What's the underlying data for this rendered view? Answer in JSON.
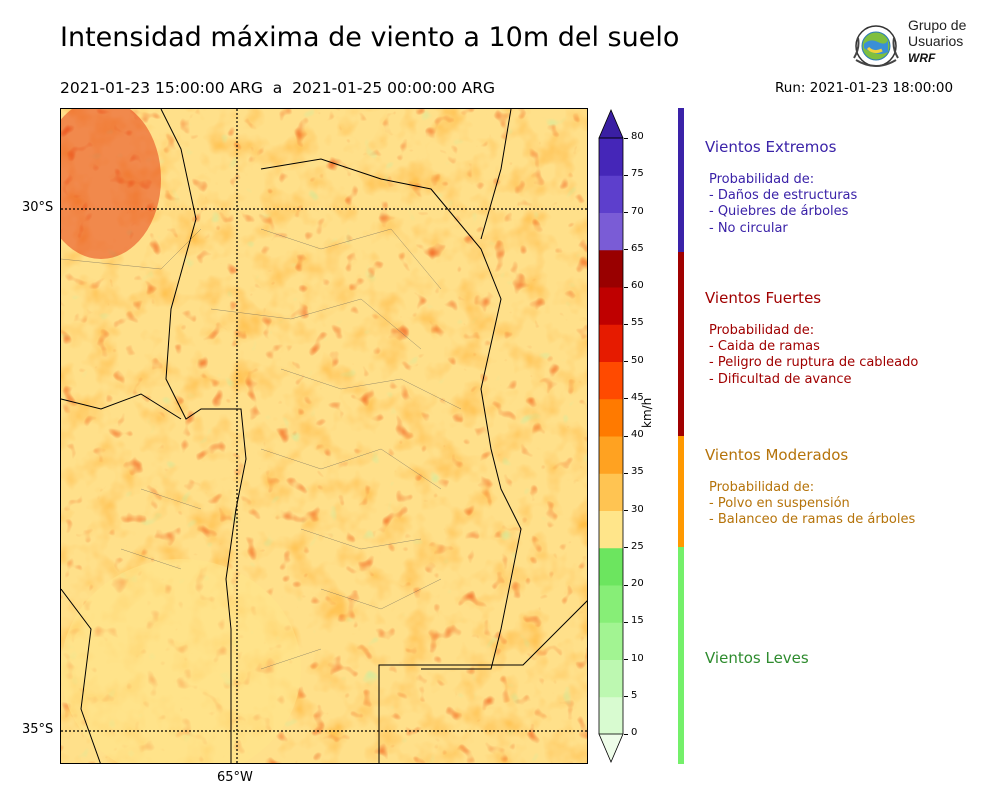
{
  "title": "Intensidad máxima de viento a 10m del suelo",
  "period": "2021-01-23 15:00:00 ARG  a  2021-01-25 00:00:00 ARG",
  "run": "Run: 2021-01-23 18:00:00",
  "logo": {
    "line1": "Grupo de",
    "line2": "Usuarios",
    "line3": "WRF"
  },
  "map": {
    "lat_labels": [
      "30°S",
      "35°S"
    ],
    "lon_labels": [
      "65°W"
    ]
  },
  "colorbar": {
    "units": "km/h",
    "ticks": [
      "0",
      "5",
      "10",
      "15",
      "20",
      "25",
      "30",
      "35",
      "40",
      "45",
      "50",
      "55",
      "60",
      "65",
      "70",
      "75",
      "80"
    ],
    "colors": [
      "#eefde9",
      "#d8fbd0",
      "#bdf8b1",
      "#a2f492",
      "#87ee77",
      "#6ce55f",
      "#ffe58a",
      "#ffc452",
      "#ffa221",
      "#ff7a00",
      "#ff4a00",
      "#e61b00",
      "#bf0000",
      "#990000",
      "#7a5cd6",
      "#5d3fcc",
      "#4526b8",
      "#3a1fa3"
    ]
  },
  "categories": [
    {
      "title": "Vientos Extremos",
      "color": "#3a22a8",
      "desc": [
        "Probabilidad de:",
        "- Daños de estructuras",
        "- Quiebres de árboles",
        "- No circular"
      ]
    },
    {
      "title": "Vientos Fuertes",
      "color": "#a00000",
      "desc": [
        "Probabilidad de:",
        "- Caida de ramas",
        "- Peligro de ruptura de cableado",
        "- Dificultad de avance"
      ]
    },
    {
      "title": "Vientos Moderados",
      "color": "#b5730a",
      "desc": [
        "Probabilidad de:",
        "- Polvo en suspensión",
        "- Balanceo de ramas de árboles"
      ]
    },
    {
      "title": "Vientos Leves",
      "color": "#2e8b2e",
      "desc": []
    }
  ],
  "category_bar_colors": [
    "#3a22a8",
    "#a00000",
    "#ff9900",
    "#74f06a"
  ]
}
